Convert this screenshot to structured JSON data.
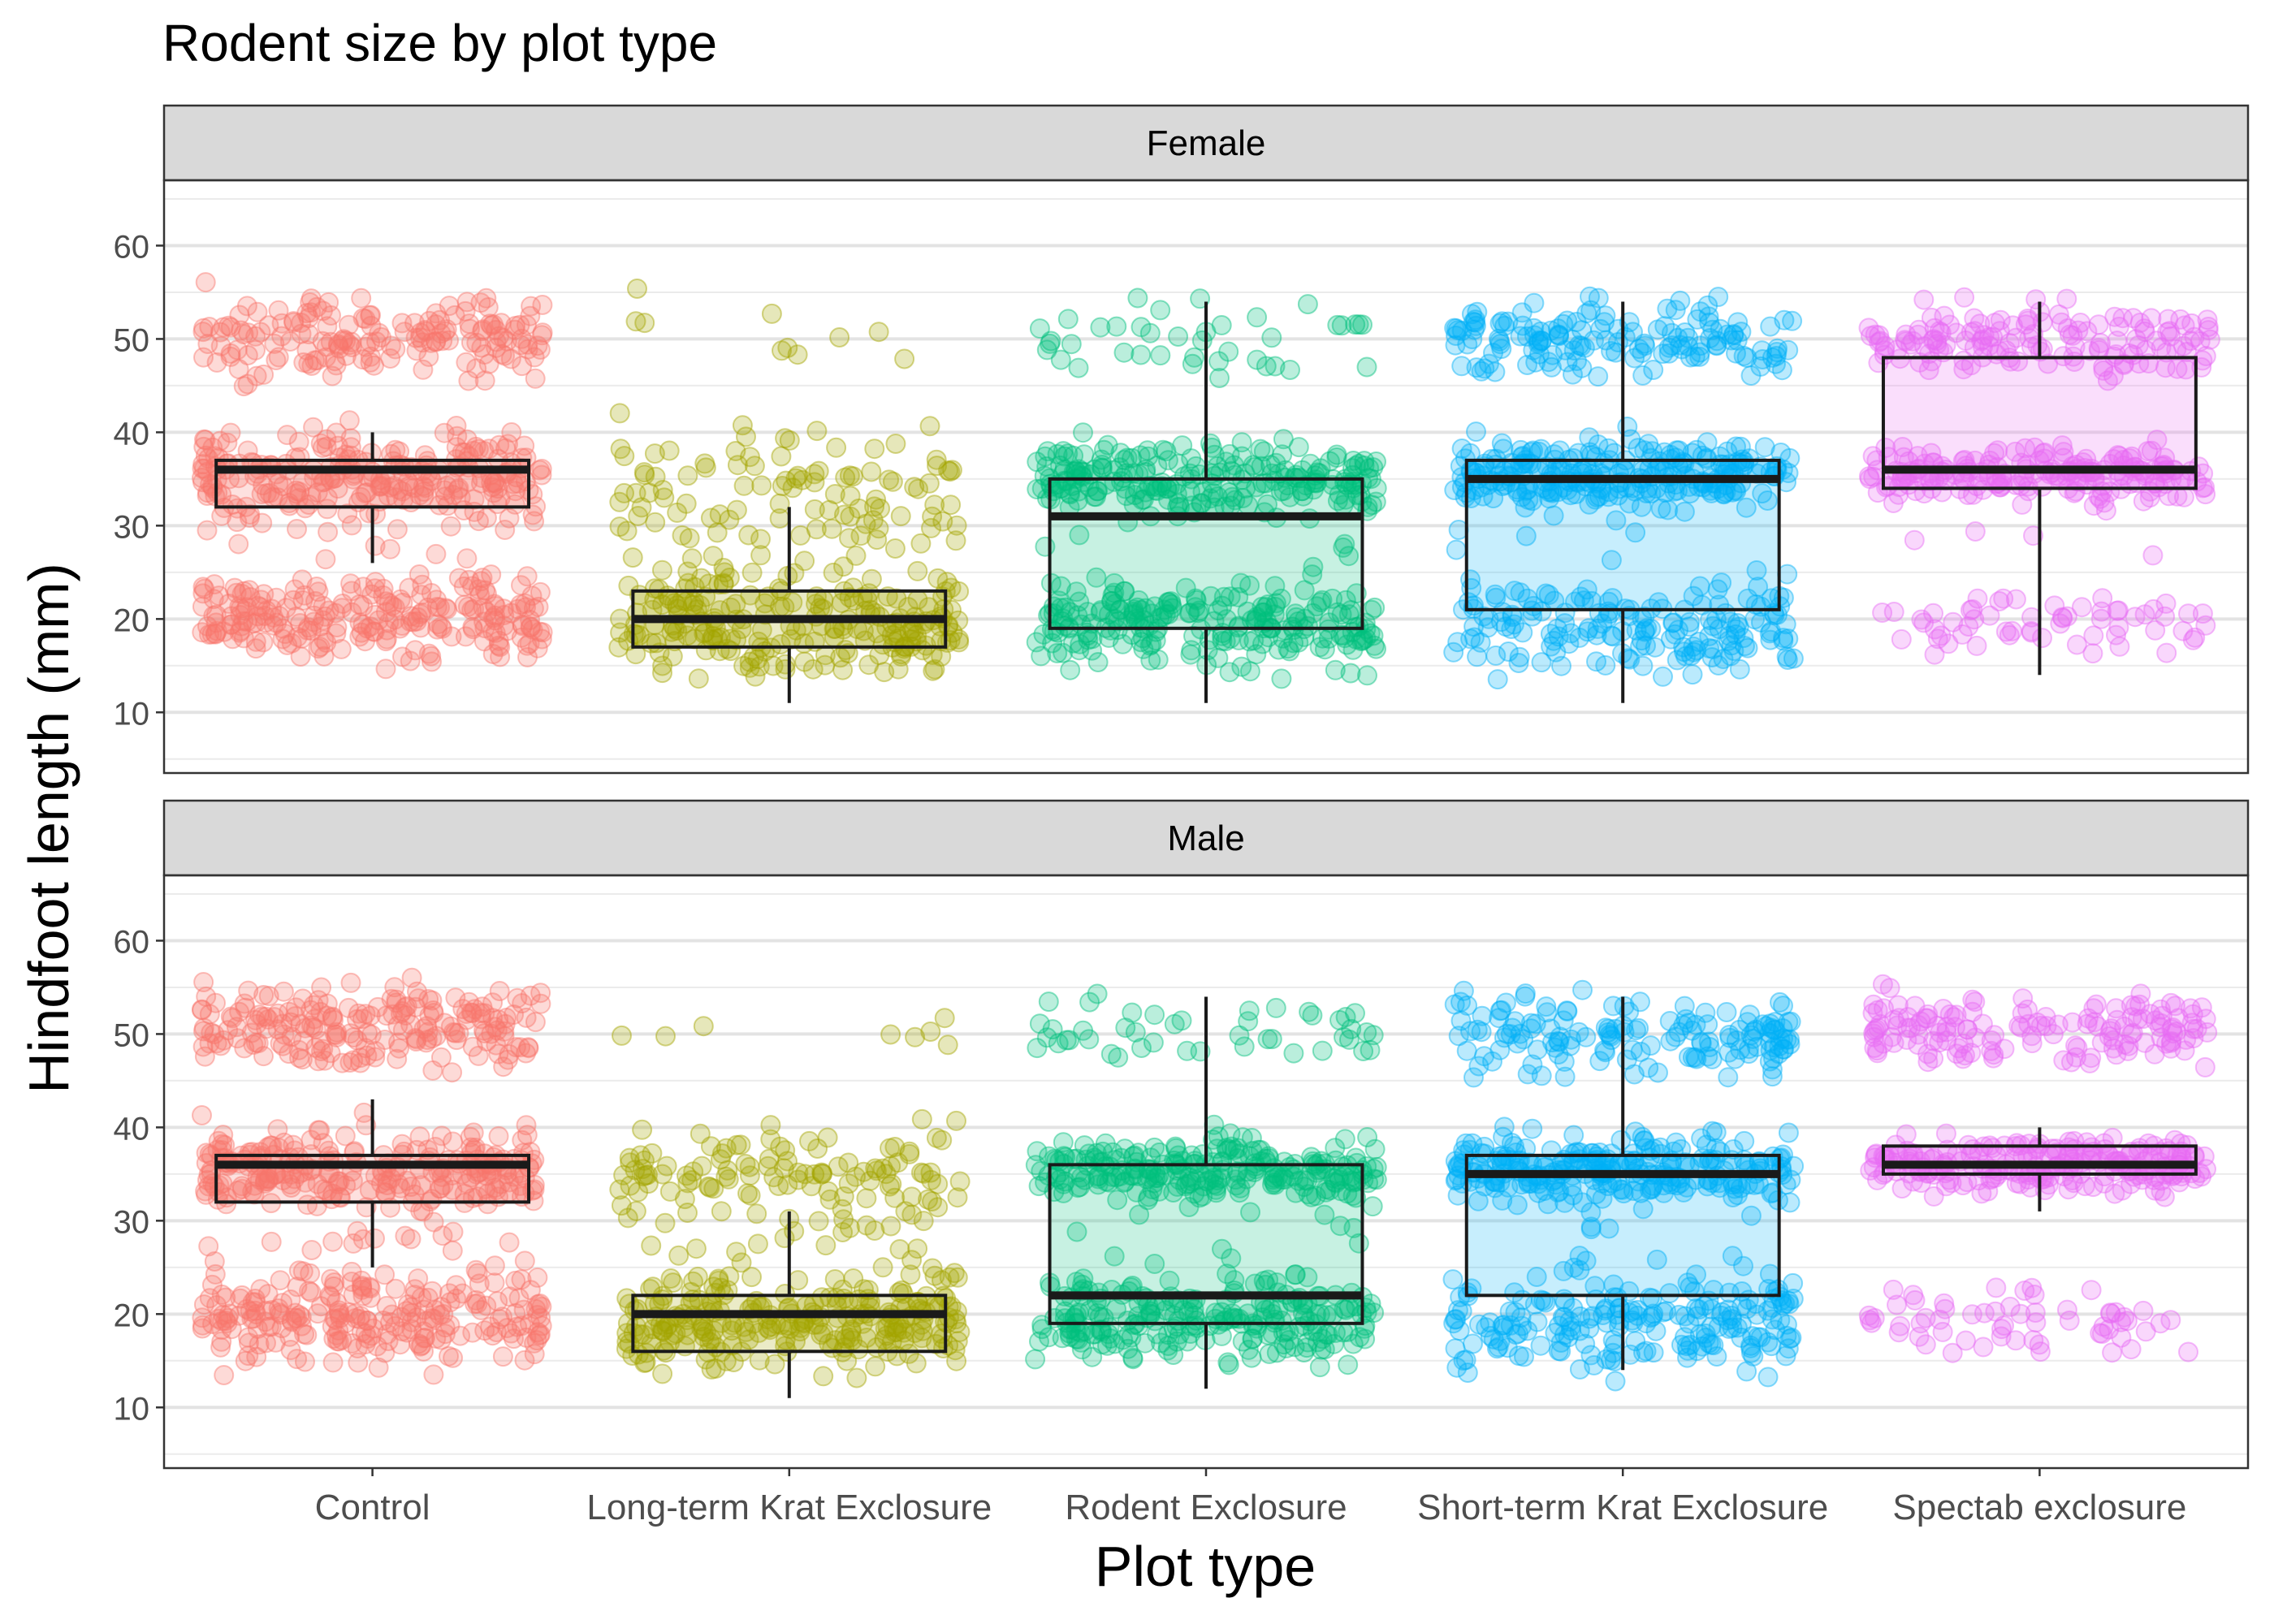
{
  "chart_data": {
    "type": "box",
    "title": "Rodent size by plot type",
    "xlabel": "Plot type",
    "ylabel": "Hindfoot length (mm)",
    "categories": [
      "Control",
      "Long-term Krat Exclosure",
      "Rodent Exclosure",
      "Short-term Krat Exclosure",
      "Spectab exclosure"
    ],
    "colors": [
      "#F8766D",
      "#A3A500",
      "#00BF7D",
      "#00B0F6",
      "#E76BF3"
    ],
    "ylim": [
      3.5,
      67
    ],
    "y_ticks": [
      10,
      20,
      30,
      40,
      50,
      60
    ],
    "grid": true,
    "legend": "none",
    "panels": [
      {
        "label": "Female",
        "boxes": [
          {
            "category": "Control",
            "whisker_low": 26,
            "q1": 32,
            "median": 36,
            "q3": 37,
            "whisker_high": 40
          },
          {
            "category": "Long-term Krat Exclosure",
            "whisker_low": 11,
            "q1": 17,
            "median": 20,
            "q3": 23,
            "whisker_high": 32
          },
          {
            "category": "Rodent Exclosure",
            "whisker_low": 11,
            "q1": 19,
            "median": 31,
            "q3": 35,
            "whisker_high": 54
          },
          {
            "category": "Short-term Krat Exclosure",
            "whisker_low": 11,
            "q1": 21,
            "median": 35,
            "q3": 37,
            "whisker_high": 54
          },
          {
            "category": "Spectab exclosure",
            "whisker_low": 14,
            "q1": 34,
            "median": 36,
            "q3": 48,
            "whisker_high": 54
          }
        ],
        "point_clusters": [
          {
            "category": "Control",
            "clusters": [
              {
                "center": 50,
                "spread": 2.2,
                "count": 170
              },
              {
                "center": 35.5,
                "spread": 2.2,
                "count": 230
              },
              {
                "center": 20,
                "spread": 2.2,
                "count": 230
              },
              {
                "center": 30,
                "spread": 2.5,
                "count": 25
              }
            ]
          },
          {
            "category": "Long-term Krat Exclosure",
            "clusters": [
              {
                "center": 49,
                "spread": 3,
                "count": 10
              },
              {
                "center": 34,
                "spread": 3.2,
                "count": 90
              },
              {
                "center": 19.5,
                "spread": 2.7,
                "count": 210
              },
              {
                "center": 27,
                "spread": 2.2,
                "count": 30
              }
            ]
          },
          {
            "category": "Rodent Exclosure",
            "clusters": [
              {
                "center": 50,
                "spread": 2.2,
                "count": 40
              },
              {
                "center": 35,
                "spread": 2,
                "count": 230
              },
              {
                "center": 19.5,
                "spread": 2.2,
                "count": 220
              },
              {
                "center": 27,
                "spread": 3,
                "count": 10
              }
            ]
          },
          {
            "category": "Short-term Krat Exclosure",
            "clusters": [
              {
                "center": 50,
                "spread": 2,
                "count": 150
              },
              {
                "center": 35.5,
                "spread": 1.8,
                "count": 250
              },
              {
                "center": 19,
                "spread": 2.5,
                "count": 170
              },
              {
                "center": 28,
                "spread": 2,
                "count": 8
              }
            ]
          },
          {
            "category": "Spectab exclosure",
            "clusters": [
              {
                "center": 50,
                "spread": 1.8,
                "count": 150
              },
              {
                "center": 35.5,
                "spread": 1.5,
                "count": 200
              },
              {
                "center": 19.5,
                "spread": 1.8,
                "count": 60
              },
              {
                "center": 29,
                "spread": 2,
                "count": 5
              }
            ]
          }
        ]
      },
      {
        "label": "Male",
        "boxes": [
          {
            "category": "Control",
            "whisker_low": 25,
            "q1": 32,
            "median": 36,
            "q3": 37,
            "whisker_high": 43
          },
          {
            "category": "Long-term Krat Exclosure",
            "whisker_low": 11,
            "q1": 16,
            "median": 20,
            "q3": 22,
            "whisker_high": 31
          },
          {
            "category": "Rodent Exclosure",
            "whisker_low": 12,
            "q1": 19,
            "median": 22,
            "q3": 36,
            "whisker_high": 54
          },
          {
            "category": "Short-term Krat Exclosure",
            "whisker_low": 14,
            "q1": 22,
            "median": 35,
            "q3": 37,
            "whisker_high": 54
          },
          {
            "category": "Spectab exclosure",
            "whisker_low": 31,
            "q1": 35,
            "median": 36,
            "q3": 38,
            "whisker_high": 40
          }
        ],
        "point_clusters": [
          {
            "category": "Control",
            "clusters": [
              {
                "center": 51,
                "spread": 2.2,
                "count": 200
              },
              {
                "center": 35.5,
                "spread": 2.2,
                "count": 240
              },
              {
                "center": 19.5,
                "spread": 2.3,
                "count": 230
              },
              {
                "center": 28,
                "spread": 2.5,
                "count": 25
              }
            ]
          },
          {
            "category": "Long-term Krat Exclosure",
            "clusters": [
              {
                "center": 50,
                "spread": 1.5,
                "count": 8
              },
              {
                "center": 34.5,
                "spread": 2.5,
                "count": 120
              },
              {
                "center": 19,
                "spread": 2.3,
                "count": 230
              },
              {
                "center": 26,
                "spread": 2.5,
                "count": 30
              }
            ]
          },
          {
            "category": "Rodent Exclosure",
            "clusters": [
              {
                "center": 50.5,
                "spread": 1.8,
                "count": 45
              },
              {
                "center": 35.5,
                "spread": 1.8,
                "count": 240
              },
              {
                "center": 19.5,
                "spread": 2.2,
                "count": 230
              },
              {
                "center": 28,
                "spread": 3,
                "count": 12
              }
            ]
          },
          {
            "category": "Short-term Krat Exclosure",
            "clusters": [
              {
                "center": 50,
                "spread": 2,
                "count": 150
              },
              {
                "center": 35.5,
                "spread": 1.8,
                "count": 250
              },
              {
                "center": 19,
                "spread": 2.5,
                "count": 200
              },
              {
                "center": 27,
                "spread": 2,
                "count": 10
              }
            ]
          },
          {
            "category": "Spectab exclosure",
            "clusters": [
              {
                "center": 50.5,
                "spread": 1.8,
                "count": 150
              },
              {
                "center": 36,
                "spread": 1.4,
                "count": 220
              },
              {
                "center": 19.5,
                "spread": 2,
                "count": 60
              }
            ]
          }
        ]
      }
    ]
  }
}
